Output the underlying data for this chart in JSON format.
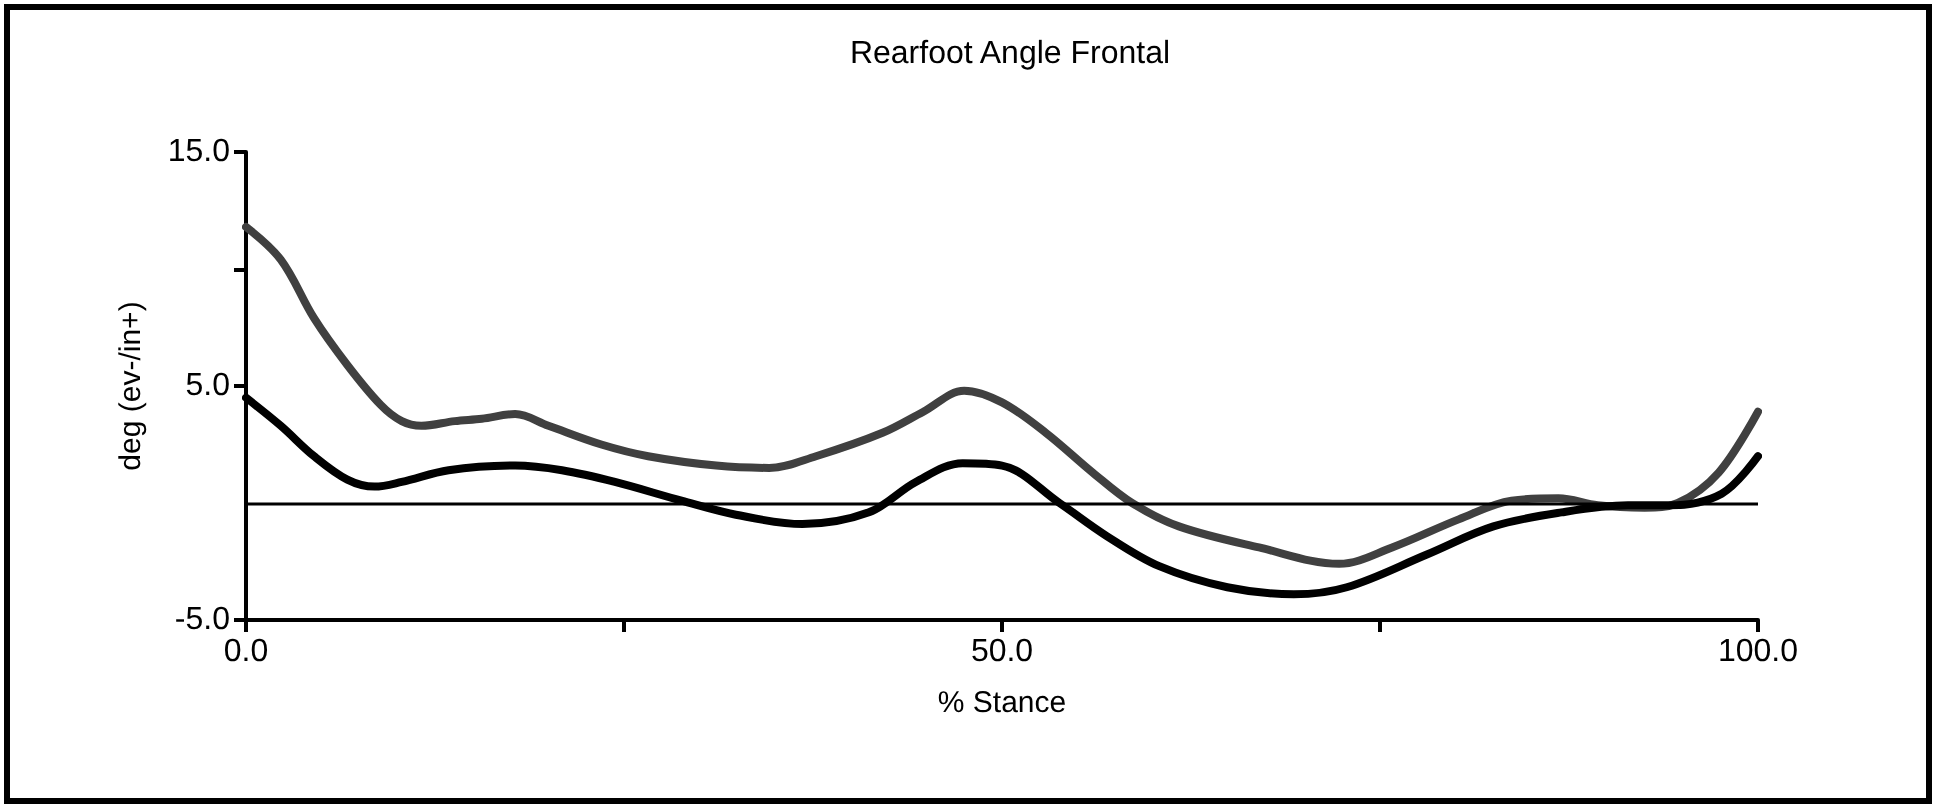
{
  "chart_data": {
    "type": "line",
    "title": "Rearfoot Angle Frontal",
    "xlabel": "% Stance",
    "ylabel": "deg (ev-/in+)",
    "xlim": [
      0,
      100
    ],
    "xticks": [
      {
        "value": 0,
        "label": "0.0"
      },
      {
        "value": 25,
        "label": null
      },
      {
        "value": 50,
        "label": "50.0"
      },
      {
        "value": 75,
        "label": null
      },
      {
        "value": 100,
        "label": "100.0"
      }
    ],
    "ylim": [
      -5,
      15
    ],
    "yticks": [
      {
        "value": -5,
        "label": "-5.0"
      },
      {
        "value": 5,
        "label": "5.0"
      },
      {
        "value": 10,
        "label": null
      },
      {
        "value": 15,
        "label": "15.0"
      }
    ],
    "grid": false,
    "marker": "none",
    "line_style": "solid",
    "ref_lines": [
      {
        "axis": "y",
        "value": 0,
        "label": null,
        "color": "#000000"
      }
    ],
    "series": [
      {
        "color": "#404040",
        "x": [
          0,
          2.3,
          4.5,
          6.7,
          8.9,
          10.3,
          11.6,
          13.8,
          15.6,
          17.8,
          20,
          23.5,
          26.6,
          31.1,
          34.6,
          37.7,
          42.1,
          44.8,
          47.5,
          50,
          52.9,
          56,
          58.6,
          61.7,
          67,
          72.3,
          75.8,
          80.2,
          83.7,
          86.8,
          89.4,
          92.5,
          94.7,
          97.4,
          100
        ],
        "values": [
          11.8,
          10.4,
          7.9,
          5.9,
          4.2,
          3.5,
          3.3,
          3.5,
          3.6,
          3.8,
          3.3,
          2.5,
          2.0,
          1.6,
          1.5,
          2.0,
          3.0,
          3.9,
          4.8,
          4.3,
          3.0,
          1.3,
          0,
          -1.0,
          -1.9,
          -2.6,
          -1.9,
          -0.7,
          0.1,
          0.2,
          -0.1,
          -0.2,
          0,
          1.3,
          3.9
        ]
      },
      {
        "color": "#000000",
        "x": [
          0,
          2.3,
          4.5,
          6.7,
          8.5,
          10.3,
          13.4,
          17.8,
          20.9,
          24.4,
          28.8,
          32.4,
          36.8,
          41.2,
          44.3,
          47.4,
          50,
          53.8,
          56.9,
          60.4,
          64.9,
          69.3,
          72.8,
          78.1,
          82.5,
          87,
          91.4,
          94.1,
          97.6,
          100
        ],
        "values": [
          4.5,
          3.3,
          2.0,
          1.0,
          0.7,
          0.9,
          1.4,
          1.6,
          1.4,
          0.9,
          0.1,
          -0.5,
          -0.9,
          -0.4,
          0.9,
          1.7,
          1.6,
          0,
          -1.4,
          -2.7,
          -3.6,
          -3.9,
          -3.6,
          -2.2,
          -1.0,
          -0.4,
          -0.1,
          -0.1,
          0.4,
          2.0
        ]
      }
    ]
  }
}
